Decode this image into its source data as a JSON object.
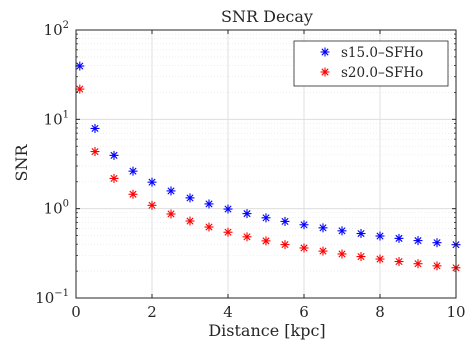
{
  "chart_data": {
    "type": "scatter",
    "title": "SNR Decay",
    "xlabel": "Distance [kpc]",
    "ylabel": "SNR",
    "xlim": [
      0,
      10
    ],
    "ylim": [
      0.1,
      100
    ],
    "yscale": "log",
    "grid": true,
    "legend_position": "top-right",
    "marker": "asterisk",
    "x_ticks": [
      "0",
      "2",
      "4",
      "6",
      "8",
      "10"
    ],
    "y_ticks": [
      {
        "value": 0.1,
        "base": "10",
        "exp": "−1"
      },
      {
        "value": 1,
        "base": "10",
        "exp": "0"
      },
      {
        "value": 10,
        "base": "10",
        "exp": "1"
      },
      {
        "value": 100,
        "base": "10",
        "exp": "2"
      }
    ],
    "x": [
      0.1,
      0.5,
      1.0,
      1.5,
      2.0,
      2.5,
      3.0,
      3.5,
      4.0,
      4.5,
      5.0,
      5.5,
      6.0,
      6.5,
      7.0,
      7.5,
      8.0,
      8.5,
      9.0,
      9.5,
      10.0
    ],
    "series": [
      {
        "name": "s15.0–SFHo",
        "color": "#0000ff",
        "values": [
          39.5,
          7.9,
          3.95,
          2.63,
          1.98,
          1.58,
          1.32,
          1.13,
          0.99,
          0.88,
          0.79,
          0.72,
          0.66,
          0.61,
          0.565,
          0.527,
          0.494,
          0.465,
          0.439,
          0.416,
          0.395
        ]
      },
      {
        "name": "s20.0–SFHo",
        "color": "#ff0000",
        "values": [
          21.8,
          4.36,
          2.18,
          1.45,
          1.09,
          0.872,
          0.727,
          0.623,
          0.545,
          0.484,
          0.436,
          0.396,
          0.363,
          0.335,
          0.311,
          0.291,
          0.273,
          0.256,
          0.242,
          0.229,
          0.218
        ]
      }
    ]
  }
}
